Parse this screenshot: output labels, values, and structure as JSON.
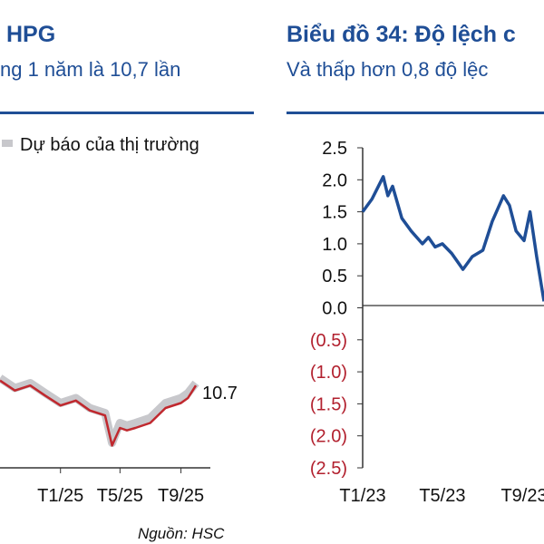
{
  "left_panel": {
    "title": "HPG",
    "subtitle": "ng 1 năm là 10,7 lần",
    "source": "Nguồn: HSC"
  },
  "right_panel": {
    "title": "Biểu đồ 34: Độ lệch c",
    "subtitle": "Và thấp hơn 0,8 độ lệc"
  },
  "colors": {
    "brand_blue": "#1f4e96",
    "forecast_grey": "#c8c8cc",
    "actual_red": "#c0282e",
    "negative_red": "#b2202e"
  },
  "chart_data": [
    {
      "type": "line",
      "title": "",
      "legend": {
        "entries": [
          "Dự báo của thị trường"
        ],
        "placement": "top"
      },
      "x_tick_labels": [
        "T1/25",
        "T5/25",
        "T9/25"
      ],
      "end_label": "10.7",
      "x_range": [
        "2024-09",
        "2025-10"
      ],
      "series": [
        {
          "name": "Dự báo của thị trường",
          "color": "#c8c8cc",
          "x": [
            "2024-09",
            "2024-10",
            "2024-11",
            "2024-12",
            "2025-01",
            "2025-02",
            "2025-03",
            "2025-04",
            "2025-04-15",
            "2025-05",
            "2025-05-15",
            "2025-06",
            "2025-07",
            "2025-08",
            "2025-09",
            "2025-09-15",
            "2025-10"
          ],
          "values": [
            10.8,
            10.6,
            10.7,
            10.5,
            10.3,
            10.4,
            10.2,
            10.1,
            9.5,
            9.9,
            9.85,
            9.9,
            10.0,
            10.3,
            10.4,
            10.5,
            10.7
          ]
        },
        {
          "name": "",
          "color": "#c0282e",
          "x": [
            "2024-09",
            "2024-10",
            "2024-11",
            "2024-12",
            "2025-01",
            "2025-02",
            "2025-03",
            "2025-04",
            "2025-04-15",
            "2025-05",
            "2025-05-15",
            "2025-06",
            "2025-07",
            "2025-08",
            "2025-09",
            "2025-09-15",
            "2025-10"
          ],
          "values": [
            10.75,
            10.55,
            10.65,
            10.45,
            10.25,
            10.35,
            10.15,
            10.05,
            9.45,
            9.8,
            9.75,
            9.8,
            9.9,
            10.2,
            10.3,
            10.4,
            10.65
          ]
        }
      ]
    },
    {
      "type": "line",
      "title": "",
      "y_tick_labels": [
        "2.5",
        "2.0",
        "1.5",
        "1.0",
        "0.5",
        "0.0",
        "(0.5)",
        "(1.0)",
        "(1.5)",
        "(2.0)",
        "(2.5)"
      ],
      "ylim": [
        -2.5,
        2.5
      ],
      "x_tick_labels": [
        "T1/23",
        "T5/23",
        "T9/23"
      ],
      "x_range": [
        "2023-01",
        "2023-10"
      ],
      "series": [
        {
          "name": "",
          "color": "#1f4e96",
          "x": [
            "2023-01",
            "2023-01-15",
            "2023-02",
            "2023-02-08",
            "2023-02-15",
            "2023-03",
            "2023-03-15",
            "2023-04",
            "2023-04-10",
            "2023-04-20",
            "2023-05",
            "2023-05-15",
            "2023-06",
            "2023-06-15",
            "2023-07",
            "2023-07-15",
            "2023-08",
            "2023-08-10",
            "2023-08-20",
            "2023-09",
            "2023-09-10",
            "2023-09-20",
            "2023-10"
          ],
          "values": [
            1.5,
            1.7,
            2.05,
            1.75,
            1.9,
            1.4,
            1.2,
            1.0,
            1.1,
            0.95,
            1.0,
            0.85,
            0.6,
            0.8,
            0.9,
            1.35,
            1.75,
            1.6,
            1.2,
            1.05,
            1.5,
            0.8,
            0.1
          ]
        }
      ]
    }
  ]
}
